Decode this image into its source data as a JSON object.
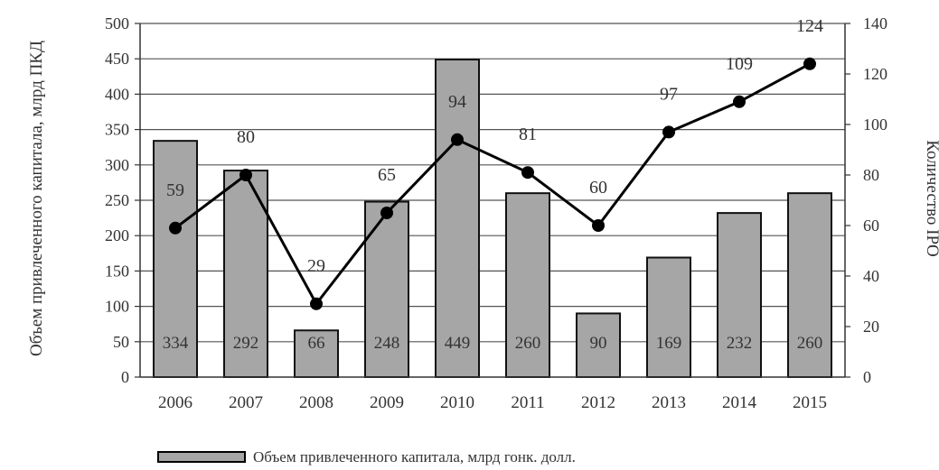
{
  "chart_data": {
    "type": "bar+line",
    "categories": [
      "2006",
      "2007",
      "2008",
      "2009",
      "2010",
      "2011",
      "2012",
      "2013",
      "2014",
      "2015"
    ],
    "series": [
      {
        "name": "Объем привлеченного капитала, млрд гонк. долл.",
        "type": "bar",
        "axis": "left",
        "values": [
          334,
          292,
          66,
          248,
          449,
          260,
          90,
          169,
          232,
          260
        ],
        "labels": [
          "334",
          "292",
          "66",
          "248",
          "449",
          "260",
          "90",
          "169",
          "232",
          "260"
        ],
        "color": "#a6a6a6"
      },
      {
        "type": "line",
        "axis": "right",
        "values": [
          59,
          80,
          29,
          65,
          94,
          81,
          60,
          97,
          109,
          124
        ],
        "labels": [
          "59",
          "80",
          "29",
          "65",
          "94",
          "81",
          "60",
          "97",
          "109",
          "124"
        ],
        "color": "#000000"
      }
    ],
    "left_axis": {
      "label": "Объем привлеченного капитала, млрд ПКД",
      "ylim": [
        0,
        500
      ],
      "ticks": [
        "0",
        "50",
        "100",
        "150",
        "200",
        "250",
        "300",
        "350",
        "400",
        "450",
        "500"
      ]
    },
    "right_axis": {
      "label": "Количество IPO",
      "ylim": [
        0,
        140
      ],
      "ticks": [
        "0",
        "20",
        "40",
        "60",
        "80",
        "100",
        "120",
        "140"
      ]
    },
    "grid": true,
    "legend": {
      "position": "bottom",
      "entries": [
        "Объем привлеченного капитала, млрд гонк. долл."
      ]
    }
  }
}
